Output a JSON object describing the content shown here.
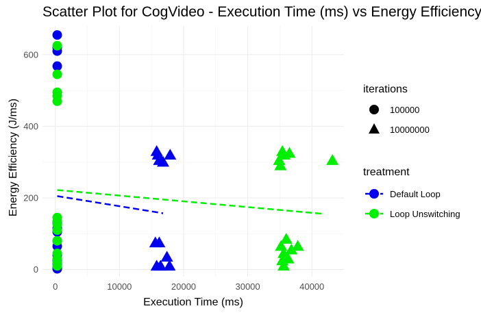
{
  "chart_data": {
    "type": "scatter",
    "title": "Scatter Plot for CogVideo - Execution Time (ms) vs Energy Efficiency",
    "xlabel": "Execution Time (ms)",
    "ylabel": "Energy Efficiency (J/ms)",
    "xlim": [
      -2000,
      45000
    ],
    "ylim": [
      -20,
      680
    ],
    "x_ticks": [
      0,
      10000,
      20000,
      30000,
      40000
    ],
    "x_tick_labels": [
      "0",
      "10000",
      "20000",
      "30000",
      "40000"
    ],
    "y_ticks": [
      0,
      200,
      400,
      600
    ],
    "y_tick_labels": [
      "0",
      "200",
      "400",
      "600"
    ],
    "grid": true,
    "colors": {
      "Default Loop": "#0000ee",
      "Loop Unswitching": "#00ee00"
    },
    "legend": {
      "position": "right",
      "shape_title": "iterations",
      "shape_entries": [
        {
          "label": "100000",
          "shape": "circle"
        },
        {
          "label": "10000000",
          "shape": "triangle"
        }
      ],
      "color_title": "treatment",
      "color_entries": [
        {
          "label": "Default Loop",
          "color": "#0000ee"
        },
        {
          "label": "Loop Unswitching",
          "color": "#00ee00"
        }
      ]
    },
    "series": [
      {
        "name": "Default Loop",
        "iterations": "100000",
        "shape": "circle",
        "color": "#0000ee",
        "x": [
          300,
          300,
          300,
          300,
          300,
          300,
          300,
          300,
          300,
          300,
          300,
          300,
          300,
          300
        ],
        "y": [
          655,
          620,
          610,
          568,
          130,
          115,
          105,
          80,
          65,
          40,
          25,
          15,
          5,
          2
        ]
      },
      {
        "name": "Default Loop",
        "iterations": "10000000",
        "shape": "triangle",
        "color": "#0000ee",
        "x": [
          15800,
          16000,
          16200,
          16800,
          17900,
          15600,
          16200,
          15800,
          17400,
          16400,
          17800
        ],
        "y": [
          330,
          320,
          305,
          300,
          320,
          75,
          75,
          10,
          35,
          10,
          10
        ]
      },
      {
        "name": "Loop Unswitching",
        "iterations": "100000",
        "shape": "circle",
        "color": "#00ee00",
        "x": [
          300,
          300,
          300,
          300,
          300,
          300,
          300,
          300,
          300,
          300,
          300,
          300,
          300,
          300
        ],
        "y": [
          625,
          545,
          495,
          485,
          470,
          145,
          135,
          125,
          110,
          80,
          45,
          30,
          20,
          10
        ]
      },
      {
        "name": "Loop Unswitching",
        "iterations": "10000000",
        "shape": "triangle",
        "color": "#00ee00",
        "x": [
          35400,
          35700,
          36500,
          34900,
          35100,
          43200,
          35200,
          36000,
          36800,
          37800,
          35600,
          35400,
          36300,
          35600
        ],
        "y": [
          330,
          320,
          325,
          305,
          290,
          305,
          65,
          85,
          55,
          65,
          45,
          25,
          30,
          10
        ]
      }
    ],
    "trend_lines": [
      {
        "name": "Default Loop",
        "color": "#0000ee",
        "x": [
          300,
          16800
        ],
        "y": [
          205,
          157
        ]
      },
      {
        "name": "Loop Unswitching",
        "color": "#00ee00",
        "x": [
          300,
          42000
        ],
        "y": [
          222,
          155
        ]
      }
    ]
  }
}
